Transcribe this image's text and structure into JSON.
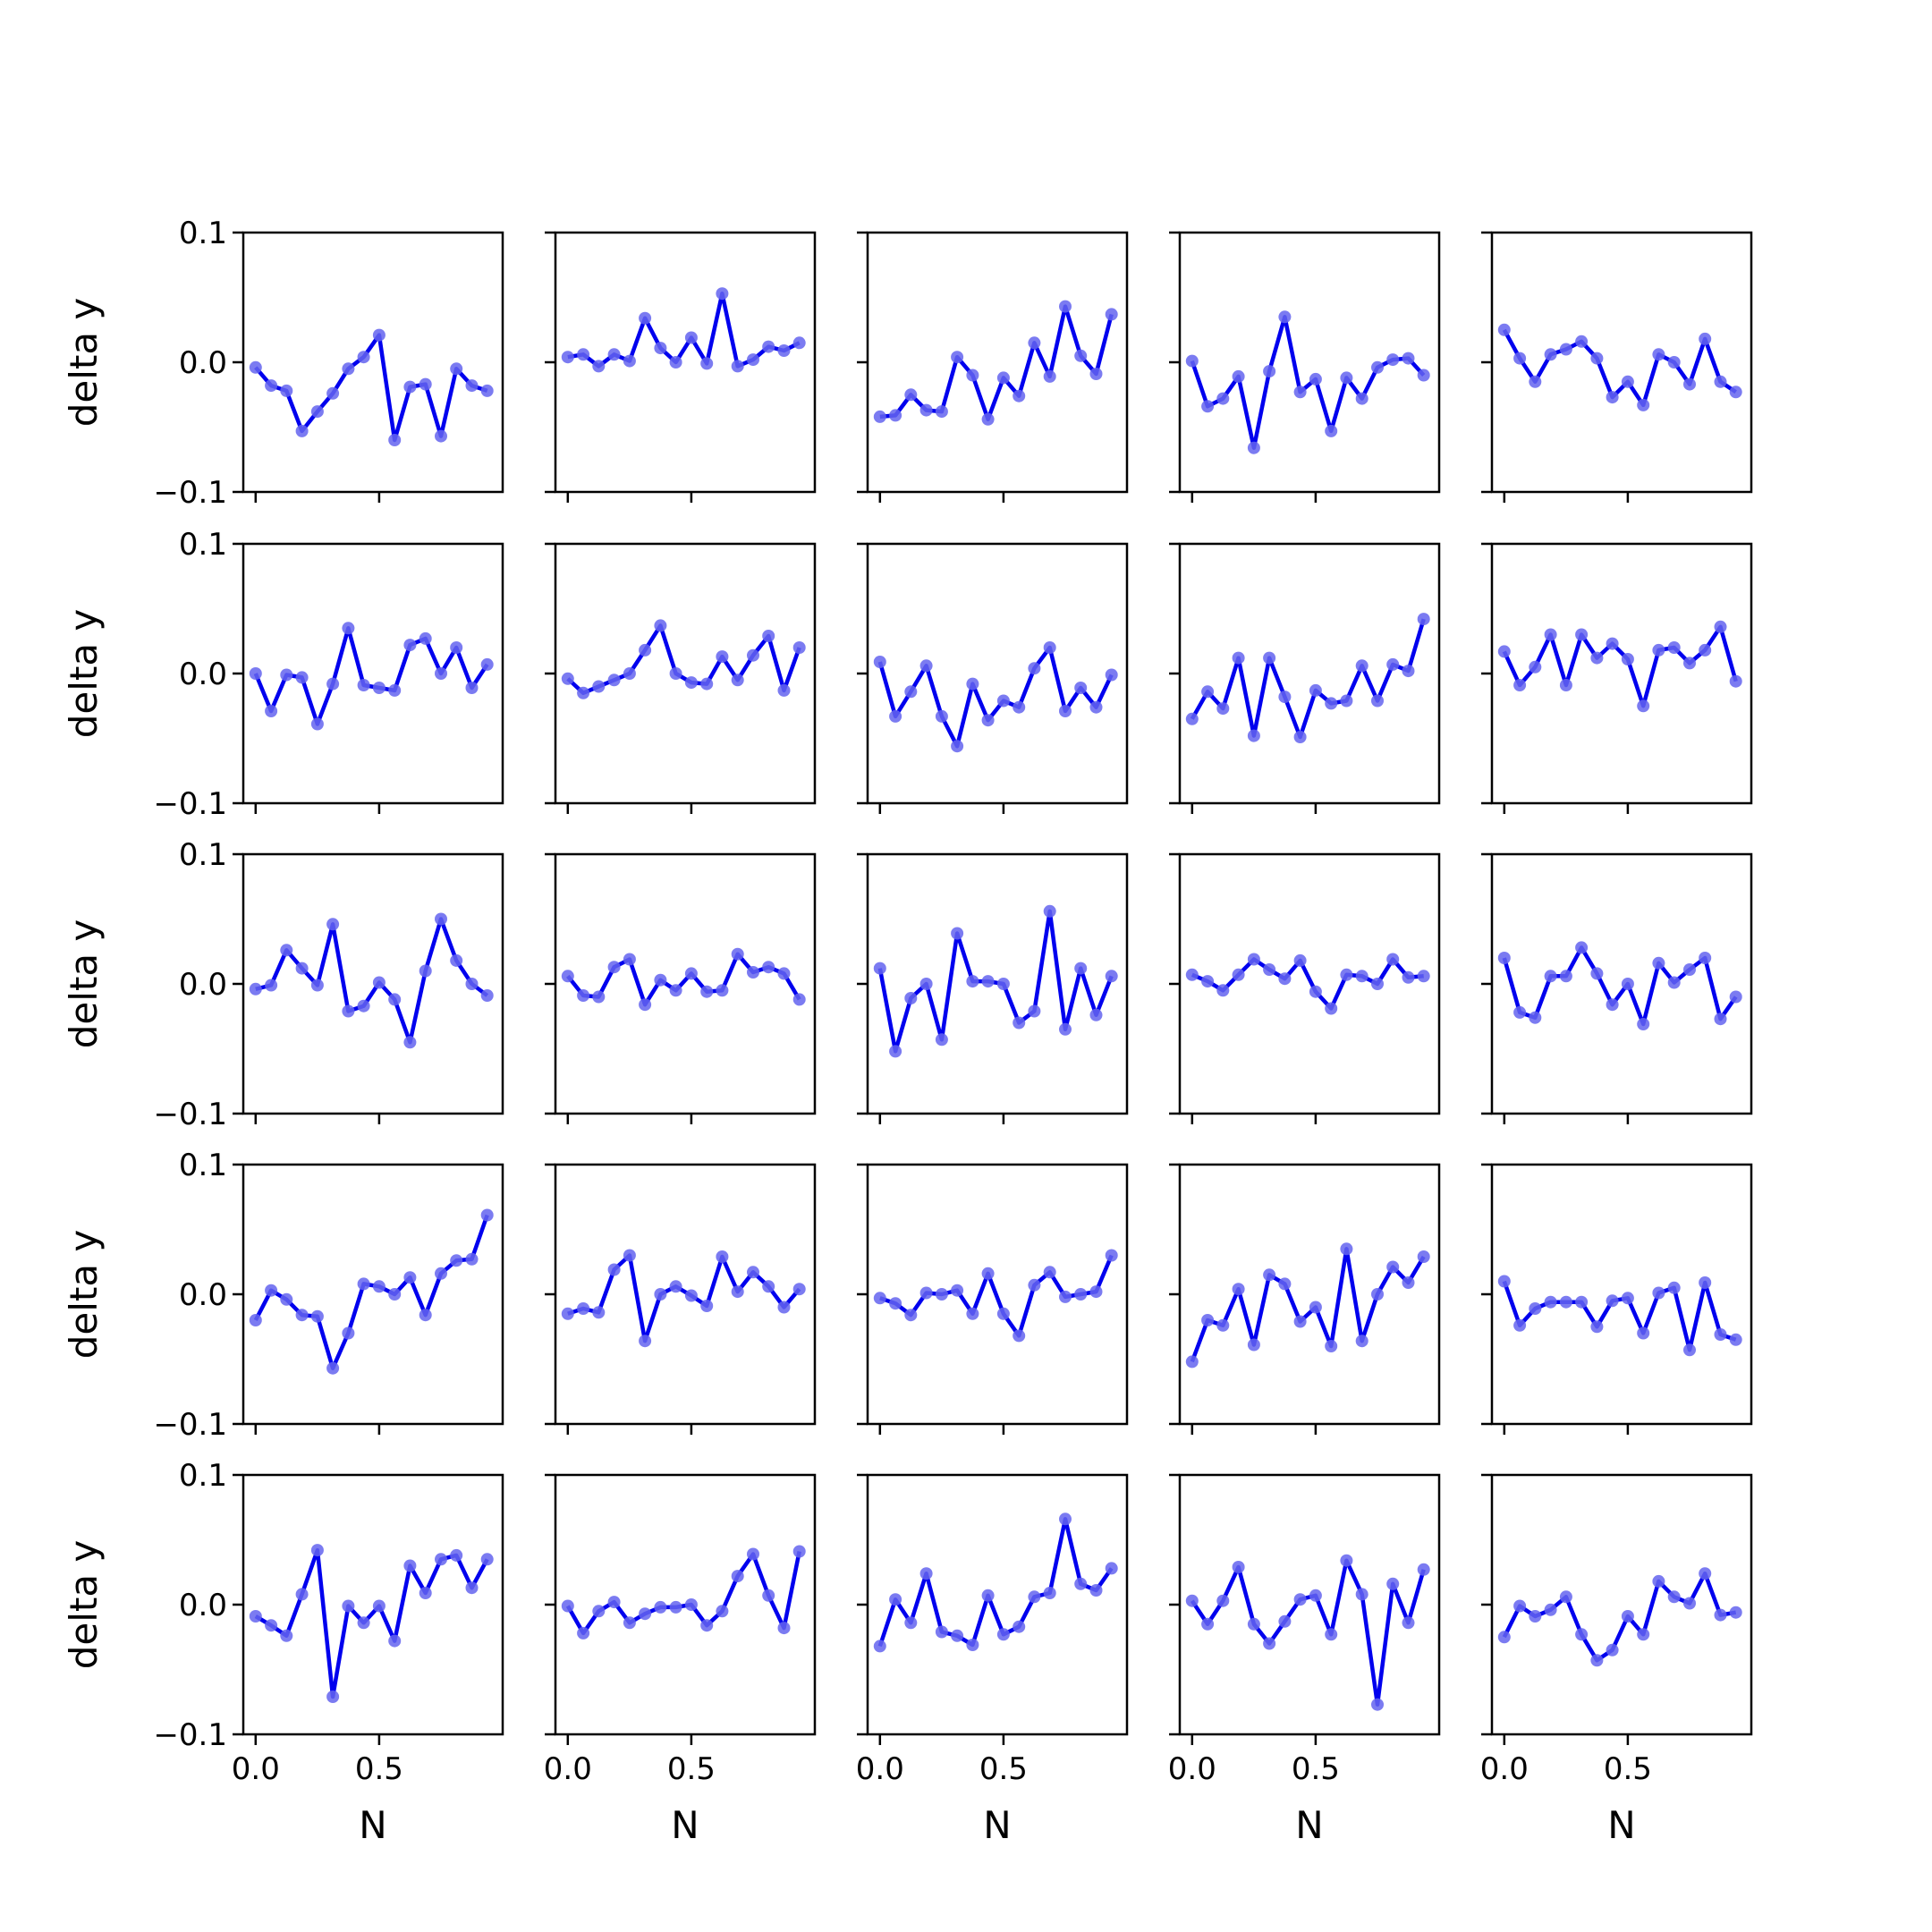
{
  "colors": {
    "line": "#0000ee",
    "marker": "#6464ee",
    "axes": "#000000"
  },
  "chart_data": {
    "type": "line",
    "layout": "grid 5x5, shared axes",
    "xlabel": "N",
    "ylabel": "delta y",
    "xlim": [
      -0.05,
      1.0
    ],
    "ylim": [
      -0.1,
      0.1
    ],
    "x_ticks": [
      0.0,
      0.5
    ],
    "x_tick_labels": [
      "0.0",
      "0.5"
    ],
    "y_ticks": [
      0.1,
      0.0,
      -0.1
    ],
    "y_tick_labels": [
      "0.1",
      "0.0",
      "−0.1"
    ],
    "grid": false,
    "x": [
      0.0,
      0.0625,
      0.125,
      0.1875,
      0.25,
      0.3125,
      0.375,
      0.4375,
      0.5,
      0.5625,
      0.625,
      0.6875,
      0.75,
      0.8125,
      0.875,
      0.9375
    ],
    "panels": [
      [
        -0.004,
        -0.018,
        -0.022,
        -0.053,
        -0.038,
        -0.024,
        -0.005,
        0.004,
        0.021,
        -0.06,
        -0.019,
        -0.017,
        -0.057,
        -0.005,
        -0.018,
        -0.022
      ],
      [
        0.004,
        0.006,
        -0.003,
        0.006,
        0.001,
        0.034,
        0.011,
        0.0,
        0.019,
        -0.001,
        0.053,
        -0.003,
        0.002,
        0.012,
        0.009,
        0.015
      ],
      [
        -0.042,
        -0.041,
        -0.025,
        -0.037,
        -0.038,
        0.004,
        -0.01,
        -0.044,
        -0.012,
        -0.026,
        0.015,
        -0.011,
        0.043,
        0.005,
        -0.009,
        0.037
      ],
      [
        0.001,
        -0.034,
        -0.028,
        -0.011,
        -0.066,
        -0.007,
        0.035,
        -0.023,
        -0.013,
        -0.053,
        -0.012,
        -0.028,
        -0.004,
        0.002,
        0.003,
        -0.01
      ],
      [
        0.025,
        0.003,
        -0.015,
        0.006,
        0.01,
        0.016,
        0.003,
        -0.027,
        -0.015,
        -0.033,
        0.006,
        0.0,
        -0.017,
        0.018,
        -0.015,
        -0.023
      ],
      [
        0.0,
        -0.029,
        -0.001,
        -0.003,
        -0.039,
        -0.008,
        0.035,
        -0.009,
        -0.011,
        -0.013,
        0.022,
        0.027,
        0.0,
        0.02,
        -0.011,
        0.007
      ],
      [
        -0.004,
        -0.015,
        -0.01,
        -0.005,
        0.0,
        0.018,
        0.037,
        0.0,
        -0.007,
        -0.008,
        0.013,
        -0.005,
        0.014,
        0.029,
        -0.013,
        0.02
      ],
      [
        0.009,
        -0.033,
        -0.014,
        0.006,
        -0.033,
        -0.056,
        -0.008,
        -0.036,
        -0.021,
        -0.026,
        0.004,
        0.02,
        -0.029,
        -0.011,
        -0.026,
        -0.001
      ],
      [
        -0.035,
        -0.014,
        -0.027,
        0.012,
        -0.048,
        0.012,
        -0.018,
        -0.049,
        -0.013,
        -0.023,
        -0.021,
        0.006,
        -0.021,
        0.007,
        0.002,
        0.042
      ],
      [
        0.017,
        -0.009,
        0.005,
        0.03,
        -0.009,
        0.03,
        0.012,
        0.023,
        0.011,
        -0.025,
        0.018,
        0.02,
        0.008,
        0.018,
        0.036,
        -0.006
      ]
    ],
    "panels_rows_3_to_5": [
      [
        -0.004,
        -0.001,
        0.026,
        0.012,
        -0.001,
        0.046,
        -0.021,
        -0.017,
        0.001,
        -0.012,
        -0.045,
        0.01,
        0.05,
        0.018,
        0.0,
        -0.009
      ],
      [
        0.006,
        -0.009,
        -0.01,
        0.013,
        0.019,
        -0.016,
        0.003,
        -0.005,
        0.008,
        -0.006,
        -0.005,
        0.023,
        0.009,
        0.013,
        0.008,
        -0.012
      ],
      [
        0.012,
        -0.052,
        -0.011,
        0.0,
        -0.043,
        0.039,
        0.002,
        0.002,
        0.0,
        -0.03,
        -0.021,
        0.056,
        -0.035,
        0.012,
        -0.024,
        0.006
      ],
      [
        0.007,
        0.002,
        -0.005,
        0.007,
        0.019,
        0.011,
        0.004,
        0.018,
        -0.006,
        -0.019,
        0.007,
        0.006,
        0.0,
        0.019,
        0.005,
        0.006
      ],
      [
        0.02,
        -0.022,
        -0.026,
        0.006,
        0.006,
        0.028,
        0.008,
        -0.016,
        0.0,
        -0.031,
        0.016,
        0.001,
        0.011,
        0.02,
        -0.027,
        -0.01
      ],
      [
        -0.02,
        0.003,
        -0.004,
        -0.016,
        -0.017,
        -0.057,
        -0.03,
        0.008,
        0.006,
        0.0,
        0.013,
        -0.016,
        0.016,
        0.026,
        0.027,
        0.061
      ],
      [
        -0.015,
        -0.011,
        -0.014,
        0.019,
        0.03,
        -0.036,
        0.0,
        0.006,
        -0.001,
        -0.009,
        0.029,
        0.002,
        0.017,
        0.006,
        -0.01,
        0.004
      ],
      [
        -0.003,
        -0.007,
        -0.016,
        0.001,
        0.0,
        0.003,
        -0.015,
        0.016,
        -0.015,
        -0.032,
        0.007,
        0.017,
        -0.002,
        0.0,
        0.002,
        0.03
      ],
      [
        -0.052,
        -0.02,
        -0.024,
        0.004,
        -0.039,
        0.015,
        0.008,
        -0.021,
        -0.01,
        -0.04,
        0.035,
        -0.036,
        0.0,
        0.021,
        0.009,
        0.029
      ],
      [
        0.01,
        -0.024,
        -0.011,
        -0.006,
        -0.006,
        -0.006,
        -0.025,
        -0.005,
        -0.003,
        -0.03,
        0.001,
        0.005,
        -0.043,
        0.009,
        -0.031,
        -0.035
      ],
      [
        -0.009,
        -0.016,
        -0.024,
        0.008,
        0.042,
        -0.071,
        -0.001,
        -0.014,
        -0.001,
        -0.028,
        0.03,
        0.009,
        0.035,
        0.038,
        0.013,
        0.035
      ],
      [
        -0.001,
        -0.022,
        -0.005,
        0.002,
        -0.014,
        -0.007,
        -0.002,
        -0.002,
        0.0,
        -0.016,
        -0.005,
        0.022,
        0.039,
        0.007,
        -0.018,
        0.041
      ],
      [
        -0.032,
        0.004,
        -0.014,
        0.024,
        -0.021,
        -0.024,
        -0.031,
        0.007,
        -0.023,
        -0.017,
        0.006,
        0.009,
        0.066,
        0.016,
        0.011,
        0.028
      ],
      [
        0.003,
        -0.015,
        0.003,
        0.029,
        -0.015,
        -0.03,
        -0.013,
        0.004,
        0.007,
        -0.023,
        0.034,
        0.008,
        -0.077,
        0.016,
        -0.014,
        0.027
      ],
      [
        -0.025,
        -0.001,
        -0.009,
        -0.004,
        0.006,
        -0.023,
        -0.043,
        -0.035,
        -0.009,
        -0.023,
        0.018,
        0.006,
        0.001,
        0.024,
        -0.008,
        -0.006
      ]
    ]
  }
}
